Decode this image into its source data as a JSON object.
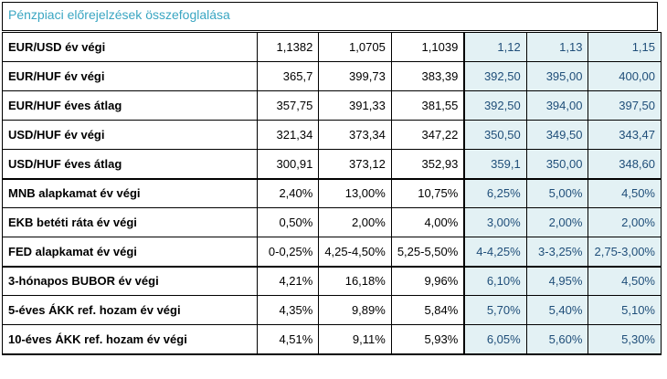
{
  "title": "Pénzpiaci előrejelzések összefoglalása",
  "colors": {
    "title": "#3aa6c2",
    "forecast_bg": "#e3f1f4",
    "forecast_text": "#1f4e79"
  },
  "rows": [
    {
      "label": "EUR/USD év végi",
      "values": [
        "1,1382",
        "1,0705",
        "1,1039",
        "1,12",
        "1,13",
        "1,15"
      ]
    },
    {
      "label": "EUR/HUF év végi",
      "values": [
        "365,7",
        "399,73",
        "383,39",
        "392,50",
        "395,00",
        "400,00"
      ]
    },
    {
      "label": "EUR/HUF éves átlag",
      "values": [
        "357,75",
        "391,33",
        "381,55",
        "392,50",
        "394,00",
        "397,50"
      ]
    },
    {
      "label": "USD/HUF év végi",
      "values": [
        "321,34",
        "373,34",
        "347,22",
        "350,50",
        "349,50",
        "343,47"
      ]
    },
    {
      "label": "USD/HUF éves átlag",
      "values": [
        "300,91",
        "373,12",
        "352,93",
        "359,1",
        "350,00",
        "348,60"
      ]
    },
    {
      "label": "MNB alapkamat év végi",
      "values": [
        "2,40%",
        "13,00%",
        "10,75%",
        "6,25%",
        "5,00%",
        "4,50%"
      ]
    },
    {
      "label": "EKB betéti ráta év végi",
      "values": [
        "0,50%",
        "2,00%",
        "4,00%",
        "3,00%",
        "2,00%",
        "2,00%"
      ]
    },
    {
      "label": "FED alapkamat év végi",
      "values": [
        "0-0,25%",
        "4,25-4,50%",
        "5,25-5,50%",
        "4-4,25%",
        "3-3,25%",
        "2,75-3,00%"
      ]
    },
    {
      "label": "3-hónapos BUBOR év végi",
      "values": [
        "4,21%",
        "16,18%",
        "9,96%",
        "6,10%",
        "4,95%",
        "4,50%"
      ]
    },
    {
      "label": "5-éves ÁKK ref. hozam év végi",
      "values": [
        "4,35%",
        "9,89%",
        "5,84%",
        "5,70%",
        "5,40%",
        "5,10%"
      ]
    },
    {
      "label": "10-éves ÁKK ref. hozam év végi",
      "values": [
        "4,51%",
        "9,11%",
        "5,93%",
        "6,05%",
        "5,60%",
        "5,30%"
      ]
    }
  ]
}
